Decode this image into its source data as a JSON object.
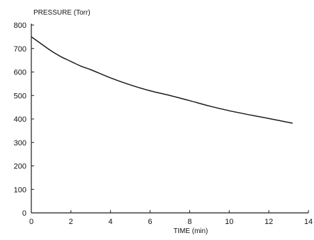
{
  "chart_data": {
    "type": "line",
    "ylabel": "PRESSURE (Torr)",
    "xlabel": "TIME (min)",
    "xlim": [
      0,
      14
    ],
    "ylim": [
      0,
      800
    ],
    "x_ticks": [
      0,
      2,
      4,
      6,
      8,
      10,
      12,
      14
    ],
    "y_ticks": [
      0,
      100,
      200,
      300,
      400,
      500,
      600,
      700,
      800
    ],
    "grid": false,
    "series": [
      {
        "x": [
          0,
          0.5,
          1,
          1.5,
          2,
          2.5,
          3,
          4,
          5,
          6,
          7,
          8,
          9,
          10,
          11,
          12,
          13.2
        ],
        "y": [
          750,
          720,
          690,
          665,
          645,
          625,
          610,
          575,
          545,
          520,
          500,
          478,
          455,
          435,
          418,
          402,
          382
        ]
      }
    ],
    "colors": {
      "line": "#1a1a1a",
      "axis": "#1a1a1a"
    }
  }
}
